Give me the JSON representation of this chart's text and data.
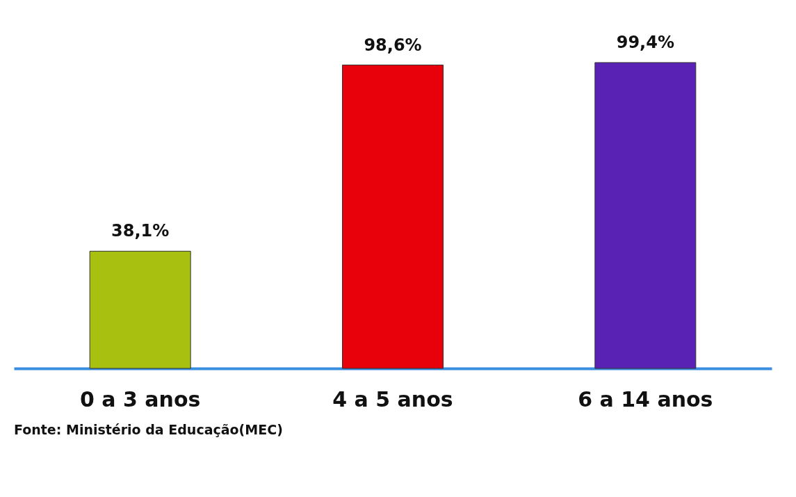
{
  "chart_data": {
    "type": "bar",
    "categories": [
      "0 a 3 anos",
      "4 a 5 anos",
      "6 a 14 anos"
    ],
    "values": [
      38.1,
      98.6,
      99.4
    ],
    "colors": [
      "#a8c010",
      "#e8000a",
      "#5a22b4"
    ],
    "value_labels": [
      "38,1%",
      "98,6%",
      "99,4%"
    ],
    "annotations": [
      "Fonte: Ministério da Educação(MEC)"
    ],
    "grid": false,
    "legend": false,
    "tick_labels": "x"
  }
}
